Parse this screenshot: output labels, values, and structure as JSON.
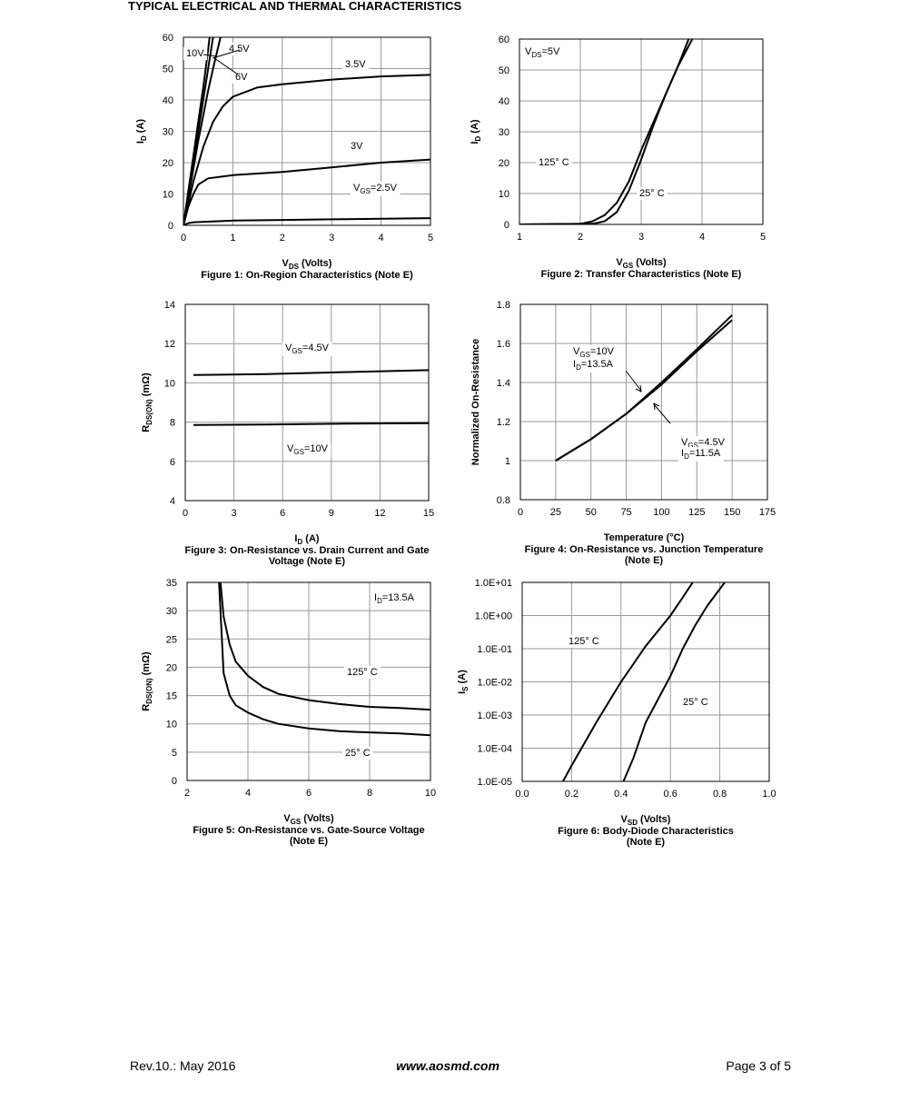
{
  "header": {
    "title": "TYPICAL ELECTRICAL AND THERMAL CHARACTERISTICS"
  },
  "chart_data": [
    {
      "type": "line",
      "title": [
        "Figure 1: On-Region Characteristics (Note E)"
      ],
      "xlabel": [
        "V",
        "DS",
        " (Volts)"
      ],
      "ylabel": [
        "I",
        "D",
        " (A)"
      ],
      "xlim": [
        0,
        5
      ],
      "ylim": [
        0,
        60
      ],
      "xticks": [
        0,
        1,
        2,
        3,
        4,
        5
      ],
      "yticks": [
        0,
        10,
        20,
        30,
        40,
        50,
        60
      ],
      "grid": true,
      "series": [
        {
          "color": "#000000",
          "x": [
            0,
            0.1,
            0.2,
            0.3,
            0.4,
            0.5,
            0.53
          ],
          "values": [
            0,
            11,
            22,
            33,
            44,
            56,
            60
          ]
        },
        {
          "color": "#000000",
          "x": [
            0,
            0.1,
            0.2,
            0.3,
            0.4,
            0.5,
            0.6
          ],
          "values": [
            0,
            10,
            20,
            30,
            40,
            50,
            60
          ]
        },
        {
          "color": "#000000",
          "x": [
            0,
            0.1,
            0.2,
            0.3,
            0.4,
            0.5,
            0.6,
            0.75
          ],
          "values": [
            0,
            9,
            18,
            27,
            35,
            43,
            50,
            60
          ]
        },
        {
          "color": "#000000",
          "x": [
            0,
            0.2,
            0.4,
            0.6,
            0.8,
            1,
            1.5,
            2,
            3,
            4,
            5
          ],
          "values": [
            0,
            14,
            25,
            33,
            38,
            41,
            44,
            45,
            46.5,
            47.5,
            48
          ]
        },
        {
          "color": "#000000",
          "x": [
            0,
            0.1,
            0.2,
            0.3,
            0.5,
            1,
            2,
            3,
            4,
            5
          ],
          "values": [
            0,
            6,
            10,
            13,
            15,
            16,
            17,
            18.5,
            20,
            21
          ]
        },
        {
          "color": "#000000",
          "x": [
            0,
            0.1,
            0.2,
            1,
            2,
            3,
            4,
            5
          ],
          "values": [
            0,
            0.7,
            1,
            1.5,
            1.7,
            1.9,
            2.1,
            2.3
          ]
        }
      ],
      "annotations": [
        "10V",
        "4.5V",
        "6V",
        "3.5V",
        "3V",
        [
          "V",
          "GS",
          "=2.5V"
        ]
      ]
    },
    {
      "type": "line",
      "title": [
        "Figure 2: Transfer Characteristics (Note E)"
      ],
      "xlabel": [
        "V",
        "GS",
        " (Volts)"
      ],
      "ylabel": [
        "I",
        "D",
        " (A)"
      ],
      "xlim": [
        1,
        5
      ],
      "ylim": [
        0,
        60
      ],
      "xticks": [
        1,
        2,
        3,
        4,
        5
      ],
      "yticks": [
        0,
        10,
        20,
        30,
        40,
        50,
        60
      ],
      "grid": true,
      "series": [
        {
          "color": "#000000",
          "x": [
            1,
            2,
            2.2,
            2.4,
            2.6,
            2.8,
            3,
            3.2,
            3.4,
            3.6,
            3.78
          ],
          "values": [
            0,
            0.2,
            1,
            3,
            7,
            14,
            24,
            33,
            42,
            51,
            60
          ]
        },
        {
          "color": "#000000",
          "x": [
            1,
            2.2,
            2.4,
            2.6,
            2.8,
            3,
            3.2,
            3.4,
            3.6,
            3.84
          ],
          "values": [
            0,
            0.2,
            1,
            4,
            11,
            21,
            32,
            42,
            51,
            60
          ]
        }
      ],
      "annotations": [
        [
          "V",
          "DS",
          "=5V"
        ],
        "125° C",
        "25° C"
      ]
    },
    {
      "type": "line",
      "title": [
        "Figure 3: On-Resistance vs. Drain Current and Gate",
        "Voltage (Note E)"
      ],
      "xlabel": [
        "I",
        "D",
        " (A)"
      ],
      "ylabel": [
        "R",
        "DS(ON)",
        " (mΩ)"
      ],
      "xlim": [
        0,
        15
      ],
      "ylim": [
        4,
        14
      ],
      "xticks": [
        0,
        3,
        6,
        9,
        12,
        15
      ],
      "yticks": [
        4,
        6,
        8,
        10,
        12,
        14
      ],
      "grid": true,
      "series": [
        {
          "color": "#000000",
          "x": [
            0.5,
            5,
            10,
            15
          ],
          "values": [
            10.4,
            10.45,
            10.55,
            10.65
          ]
        },
        {
          "color": "#000000",
          "x": [
            0.5,
            5,
            10,
            15
          ],
          "values": [
            7.85,
            7.88,
            7.92,
            7.95
          ]
        }
      ],
      "annotations": [
        [
          "V",
          "GS",
          "=4.5V"
        ],
        [
          "V",
          "GS",
          "=10V"
        ]
      ]
    },
    {
      "type": "line",
      "title": [
        "Figure 4: On-Resistance vs. Junction Temperature",
        "(Note E)"
      ],
      "xlabel": "Temperature (°C)",
      "ylabel": "Normalized On-Resistance",
      "xlim": [
        0,
        175
      ],
      "ylim": [
        0.8,
        1.8
      ],
      "xticks": [
        0,
        25,
        50,
        75,
        100,
        125,
        150,
        175
      ],
      "yticks": [
        0.8,
        1,
        1.2,
        1.4,
        1.6,
        1.8
      ],
      "grid": true,
      "series": [
        {
          "color": "#000000",
          "x": [
            25,
            50,
            75,
            100,
            125,
            150
          ],
          "values": [
            1.0,
            1.11,
            1.24,
            1.39,
            1.56,
            1.72
          ]
        },
        {
          "color": "#000000",
          "x": [
            25,
            50,
            75,
            100,
            125,
            150
          ],
          "values": [
            1.0,
            1.11,
            1.24,
            1.4,
            1.57,
            1.745
          ]
        }
      ],
      "annotations": [
        [
          "V",
          "GS",
          "=10V"
        ],
        [
          "I",
          "D",
          "=13.5A"
        ],
        [
          "V",
          "GS",
          "=4.5V"
        ],
        [
          "I",
          "D",
          "=11.5A"
        ]
      ]
    },
    {
      "type": "line",
      "title": [
        "Figure 5: On-Resistance vs. Gate-Source Voltage",
        "(Note E)"
      ],
      "xlabel": [
        "V",
        "GS",
        " (Volts)"
      ],
      "ylabel": [
        "R",
        "DS(ON)",
        " (mΩ)"
      ],
      "xlim": [
        2,
        10
      ],
      "ylim": [
        0,
        35
      ],
      "xticks": [
        2,
        4,
        6,
        8,
        10
      ],
      "yticks": [
        0,
        5,
        10,
        15,
        20,
        25,
        30,
        35
      ],
      "grid": true,
      "series": [
        {
          "color": "#000000",
          "x": [
            3.1,
            3.2,
            3.4,
            3.6,
            4,
            4.5,
            5,
            6,
            7,
            8,
            9,
            10
          ],
          "values": [
            35,
            29,
            24,
            21,
            18.5,
            16.5,
            15.3,
            14.2,
            13.5,
            13,
            12.8,
            12.5
          ]
        },
        {
          "color": "#000000",
          "x": [
            3.05,
            3.2,
            3.4,
            3.6,
            4,
            4.5,
            5,
            6,
            7,
            8,
            9,
            10
          ],
          "values": [
            35,
            19,
            15,
            13.3,
            12,
            10.8,
            10,
            9.2,
            8.7,
            8.5,
            8.3,
            8
          ]
        }
      ],
      "annotations": [
        [
          "I",
          "D",
          "=13.5A"
        ],
        "125° C",
        "25° C"
      ]
    },
    {
      "type": "line",
      "title": [
        "Figure 6: Body-Diode Characteristics",
        "(Note E)"
      ],
      "xlabel": [
        "V",
        "SD",
        " (Volts)"
      ],
      "ylabel": [
        "I",
        "S",
        " (A)"
      ],
      "xlim": [
        0,
        1
      ],
      "ylim": [
        1e-05,
        10
      ],
      "log_y": true,
      "xticks": [
        {
          "value": 0,
          "label": "0.0"
        },
        0.2,
        0.4,
        0.6,
        0.8,
        {
          "value": 1,
          "label": "1.0"
        }
      ],
      "yticks": [
        {
          "value": 1e-05,
          "label": "1.0E-05"
        },
        {
          "value": 0.0001,
          "label": "1.0E-04"
        },
        {
          "value": 0.001,
          "label": "1.0E-03"
        },
        {
          "value": 0.01,
          "label": "1.0E-02"
        },
        {
          "value": 0.1,
          "label": "1.0E-01"
        },
        {
          "value": 1,
          "label": "1.0E+00"
        },
        {
          "value": 10,
          "label": "1.0E+01"
        }
      ],
      "grid": true,
      "series": [
        {
          "color": "#000000",
          "x": [
            0.165,
            0.2,
            0.3,
            0.4,
            0.5,
            0.6,
            0.65,
            0.69
          ],
          "values": [
            1e-05,
            3e-05,
            0.0006,
            0.01,
            0.12,
            1,
            3.5,
            10
          ]
        },
        {
          "color": "#000000",
          "x": [
            0.41,
            0.45,
            0.5,
            0.55,
            0.6,
            0.65,
            0.7,
            0.75,
            0.82
          ],
          "values": [
            1e-05,
            5e-05,
            0.0006,
            0.003,
            0.015,
            0.1,
            0.5,
            2,
            10
          ]
        }
      ],
      "annotations": [
        "125° C",
        "25° C"
      ]
    }
  ],
  "footer": {
    "revision": "Rev.10.: May 2016",
    "website": "www.aosmd.com",
    "page": "Page 3 of 5"
  }
}
